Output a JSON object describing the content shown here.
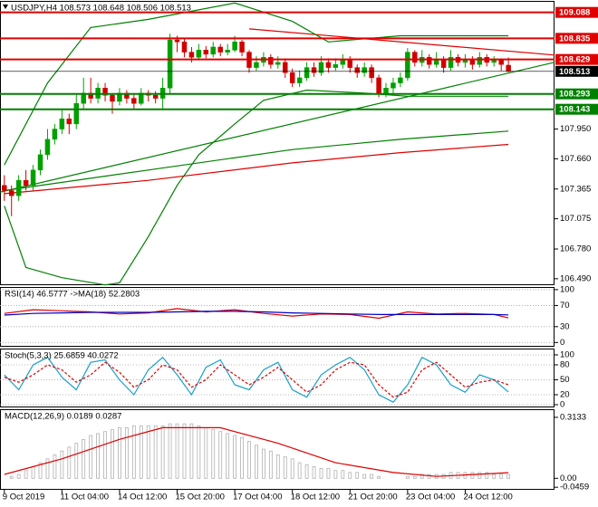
{
  "chart_data": [
    {
      "type": "candlestick",
      "label": "USDJPY,H4  108.573 108.648 108.506 108.513",
      "xlim": [
        -0.6,
        76.4
      ],
      "ylim": [
        106.427,
        109.2
      ],
      "yticks": [
        {
          "value": 106.49,
          "label": "106.490"
        },
        {
          "value": 106.78,
          "label": "106.780"
        },
        107.075,
        107.365,
        {
          "value": 107.66,
          "label": "107.660"
        },
        {
          "value": 107.95,
          "label": "107.950"
        }
      ],
      "up_color": "#00a000",
      "down_color": "#d00000",
      "open": [
        107.4,
        107.35,
        107.3,
        107.45,
        107.4,
        107.55,
        107.7,
        107.85,
        107.95,
        108.05,
        108.0,
        108.2,
        108.3,
        108.25,
        108.35,
        108.28,
        108.22,
        108.3,
        108.25,
        108.2,
        108.3,
        108.28,
        108.25,
        108.35,
        108.82,
        108.8,
        108.7,
        108.65,
        108.72,
        108.68,
        108.75,
        108.7,
        108.72,
        108.8,
        108.7,
        108.55,
        108.6,
        108.65,
        108.58,
        108.6,
        108.5,
        108.4,
        108.45,
        108.55,
        108.5,
        108.6,
        108.55,
        108.58,
        108.62,
        108.55,
        108.5,
        108.55,
        108.45,
        108.3,
        108.35,
        108.4,
        108.45,
        108.7,
        108.6,
        108.65,
        108.58,
        108.62,
        108.55,
        108.65,
        108.6,
        108.62,
        108.58,
        108.65,
        108.6,
        108.62,
        108.573
      ],
      "high": [
        107.5,
        107.4,
        107.5,
        107.55,
        107.6,
        107.75,
        107.95,
        108.0,
        108.15,
        108.1,
        108.3,
        108.45,
        108.45,
        108.4,
        108.4,
        108.3,
        108.35,
        108.33,
        108.3,
        108.35,
        108.33,
        108.32,
        108.45,
        108.88,
        108.86,
        108.84,
        108.75,
        108.78,
        108.76,
        108.8,
        108.78,
        108.78,
        108.86,
        108.82,
        108.72,
        108.66,
        108.7,
        108.68,
        108.66,
        108.64,
        108.54,
        108.52,
        108.6,
        108.6,
        108.66,
        108.64,
        108.64,
        108.68,
        108.66,
        108.58,
        108.6,
        108.58,
        108.48,
        108.4,
        108.45,
        108.5,
        108.74,
        108.72,
        108.72,
        108.68,
        108.7,
        108.66,
        108.72,
        108.68,
        108.68,
        108.66,
        108.7,
        108.68,
        108.66,
        108.64,
        108.648
      ],
      "low": [
        107.25,
        107.1,
        107.25,
        107.35,
        107.35,
        107.5,
        107.65,
        107.8,
        107.9,
        107.9,
        107.95,
        108.15,
        108.2,
        108.2,
        108.22,
        108.1,
        108.18,
        108.2,
        108.15,
        108.18,
        108.22,
        108.2,
        108.15,
        108.3,
        108.7,
        108.65,
        108.6,
        108.62,
        108.64,
        108.65,
        108.66,
        108.67,
        108.7,
        108.66,
        108.5,
        108.52,
        108.56,
        108.54,
        108.54,
        108.45,
        108.36,
        108.36,
        108.42,
        108.46,
        108.47,
        108.5,
        108.52,
        108.54,
        108.5,
        108.45,
        108.46,
        108.4,
        108.26,
        108.26,
        108.3,
        108.36,
        108.42,
        108.56,
        108.56,
        108.54,
        108.55,
        108.5,
        108.52,
        108.56,
        108.55,
        108.53,
        108.55,
        108.56,
        108.56,
        108.52,
        108.506
      ],
      "close": [
        107.35,
        107.3,
        107.45,
        107.4,
        107.55,
        107.7,
        107.85,
        107.95,
        108.05,
        108.0,
        108.2,
        108.3,
        108.25,
        108.35,
        108.28,
        108.22,
        108.3,
        108.25,
        108.2,
        108.3,
        108.28,
        108.25,
        108.35,
        108.82,
        108.8,
        108.7,
        108.65,
        108.72,
        108.68,
        108.75,
        108.7,
        108.72,
        108.8,
        108.7,
        108.55,
        108.6,
        108.65,
        108.58,
        108.6,
        108.5,
        108.4,
        108.45,
        108.55,
        108.5,
        108.6,
        108.55,
        108.58,
        108.62,
        108.55,
        108.5,
        108.55,
        108.45,
        108.3,
        108.35,
        108.4,
        108.45,
        108.7,
        108.6,
        108.65,
        108.58,
        108.62,
        108.55,
        108.65,
        108.6,
        108.62,
        108.58,
        108.65,
        108.6,
        108.62,
        108.58,
        108.513
      ],
      "levels": [
        {
          "value": 109.088,
          "color": "#e00000"
        },
        {
          "value": 108.835,
          "color": "#e00000"
        },
        {
          "value": 108.629,
          "color": "#e00000"
        },
        {
          "value": 108.513,
          "color": "#000000"
        },
        {
          "value": 108.293,
          "color": "#008000"
        },
        {
          "value": 108.143,
          "color": "#008000"
        }
      ],
      "overlays": [
        {
          "color": "#e00000",
          "x": [
            34,
            76.4
          ],
          "values": [
            108.927,
            108.672
          ]
        },
        {
          "color": "#008000",
          "x": [
            -0.6,
            76.4
          ],
          "values": [
            107.334,
            108.601
          ]
        },
        {
          "color": "#e00000",
          "x": [
            0,
            20,
            40,
            55,
            70
          ],
          "values": [
            107.32,
            107.45,
            107.62,
            107.72,
            107.8
          ]
        },
        {
          "color": "#008000",
          "x": [
            0,
            20,
            40,
            55,
            70
          ],
          "values": [
            107.35,
            107.55,
            107.75,
            107.85,
            107.93
          ]
        },
        {
          "color": "#008000",
          "x": [
            0,
            6,
            12,
            20,
            32,
            40,
            45,
            55,
            70
          ],
          "values": [
            107.6,
            108.4,
            108.94,
            109.02,
            109.18,
            109.0,
            108.8,
            108.86,
            108.86
          ]
        },
        {
          "color": "#008000",
          "x": [
            0,
            3,
            8,
            14,
            16,
            20,
            24,
            27,
            32,
            36,
            42,
            50,
            56,
            70
          ],
          "values": [
            107.2,
            106.6,
            106.5,
            106.43,
            106.45,
            106.9,
            107.4,
            107.7,
            108.0,
            108.23,
            108.33,
            108.3,
            108.27,
            108.27
          ]
        }
      ]
    },
    {
      "type": "line",
      "label": "RSI(14) 46.5777  ->MA(18) 52.2803",
      "ylim": [
        -8,
        105
      ],
      "yticks": [
        100,
        70,
        30,
        0
      ],
      "grid": true,
      "series": [
        {
          "color": "#e00000",
          "style": "solid",
          "x": [
            0,
            4,
            8,
            12,
            16,
            20,
            24,
            28,
            32,
            36,
            40,
            44,
            48,
            52,
            56,
            60,
            64,
            68,
            70
          ],
          "values": [
            55,
            62,
            60,
            58,
            54,
            56,
            64,
            58,
            62,
            55,
            50,
            54,
            53,
            46,
            58,
            54,
            55,
            53,
            46.5777
          ]
        },
        {
          "color": "#0000c0",
          "style": "solid",
          "x": [
            0,
            4,
            8,
            12,
            16,
            20,
            24,
            28,
            32,
            36,
            40,
            44,
            48,
            52,
            56,
            60,
            64,
            68,
            70
          ],
          "values": [
            52,
            55,
            56,
            57,
            57,
            57,
            58,
            59,
            59,
            58,
            56,
            55,
            54,
            53,
            53,
            53,
            53,
            53,
            52.2803
          ]
        }
      ]
    },
    {
      "type": "line",
      "label": "Stoch(5,3,3) 25.6859 40.0272",
      "ylim": [
        -5.5,
        112.7
      ],
      "yticks": [
        100,
        80,
        50,
        20,
        0
      ],
      "grid": true,
      "series": [
        {
          "color": "#1aa0c8",
          "style": "solid",
          "x": [
            0,
            2,
            4,
            6,
            8,
            10,
            12,
            14,
            16,
            18,
            20,
            22,
            24,
            26,
            28,
            30,
            32,
            34,
            36,
            38,
            40,
            42,
            44,
            46,
            48,
            50,
            52,
            54,
            56,
            58,
            60,
            62,
            64,
            66,
            68,
            70
          ],
          "values": [
            60,
            30,
            80,
            95,
            55,
            30,
            85,
            90,
            50,
            20,
            70,
            95,
            60,
            20,
            75,
            90,
            40,
            30,
            70,
            85,
            30,
            15,
            60,
            80,
            95,
            70,
            20,
            5,
            40,
            95,
            80,
            40,
            25,
            60,
            50,
            25.6859
          ]
        },
        {
          "color": "#e00000",
          "style": "dashed",
          "x": [
            0,
            2,
            4,
            6,
            8,
            10,
            12,
            14,
            16,
            18,
            20,
            22,
            24,
            26,
            28,
            30,
            32,
            34,
            36,
            38,
            40,
            42,
            44,
            46,
            48,
            50,
            52,
            54,
            56,
            58,
            60,
            62,
            64,
            66,
            68,
            70
          ],
          "values": [
            55,
            45,
            60,
            80,
            70,
            45,
            60,
            85,
            65,
            35,
            50,
            80,
            70,
            35,
            50,
            80,
            60,
            40,
            55,
            75,
            50,
            25,
            40,
            70,
            85,
            80,
            40,
            15,
            25,
            70,
            85,
            60,
            35,
            45,
            50,
            40.0272
          ]
        }
      ]
    },
    {
      "type": "bar",
      "label": "MACD(12,26,9) 0.0189 0.0287",
      "ylim": [
        -0.059,
        0.355
      ],
      "yticks": [
        0.3133,
        {
          "value": 0,
          "label": "0.00"
        },
        -0.0459
      ],
      "color": "#b0b0b0",
      "categories": [
        "9 Oct 2019",
        null,
        null,
        null,
        null,
        null,
        null,
        null,
        "11 Oct 04:00",
        null,
        null,
        null,
        null,
        null,
        null,
        null,
        "14 Oct 12:00",
        null,
        null,
        null,
        null,
        null,
        null,
        null,
        "15 Oct 20:00",
        null,
        null,
        null,
        null,
        null,
        null,
        null,
        "17 Oct 04:00",
        null,
        null,
        null,
        null,
        null,
        null,
        null,
        "18 Oct 12:00",
        null,
        null,
        null,
        null,
        null,
        null,
        null,
        "21 Oct 20:00",
        null,
        null,
        null,
        null,
        null,
        null,
        null,
        "23 Oct 04:00",
        null,
        null,
        null,
        null,
        null,
        null,
        null,
        "24 Oct 12:00",
        null,
        null,
        null,
        null,
        null,
        null
      ],
      "values": [
        0.0,
        0.01,
        0.02,
        0.04,
        0.06,
        0.08,
        0.1,
        0.12,
        0.14,
        0.16,
        0.18,
        0.2,
        0.22,
        0.23,
        0.24,
        0.25,
        0.26,
        0.26,
        0.27,
        0.27,
        0.27,
        0.27,
        0.27,
        0.28,
        0.28,
        0.28,
        0.28,
        0.27,
        0.26,
        0.25,
        0.24,
        0.23,
        0.22,
        0.21,
        0.19,
        0.17,
        0.15,
        0.14,
        0.12,
        0.11,
        0.1,
        0.08,
        0.07,
        0.06,
        0.05,
        0.05,
        0.04,
        0.04,
        0.03,
        0.03,
        0.02,
        0.02,
        0.01,
        0.0,
        0.0,
        0.0,
        0.01,
        0.01,
        0.02,
        0.02,
        0.02,
        0.02,
        0.03,
        0.03,
        0.03,
        0.03,
        0.03,
        0.03,
        0.02,
        0.02,
        0.0189
      ],
      "series": [
        {
          "color": "#e00000",
          "style": "solid",
          "x": [
            0,
            8,
            16,
            22,
            30,
            38,
            46,
            54,
            60,
            70
          ],
          "values": [
            0.02,
            0.1,
            0.2,
            0.26,
            0.26,
            0.18,
            0.08,
            0.03,
            0.01,
            0.0287
          ]
        }
      ]
    }
  ]
}
